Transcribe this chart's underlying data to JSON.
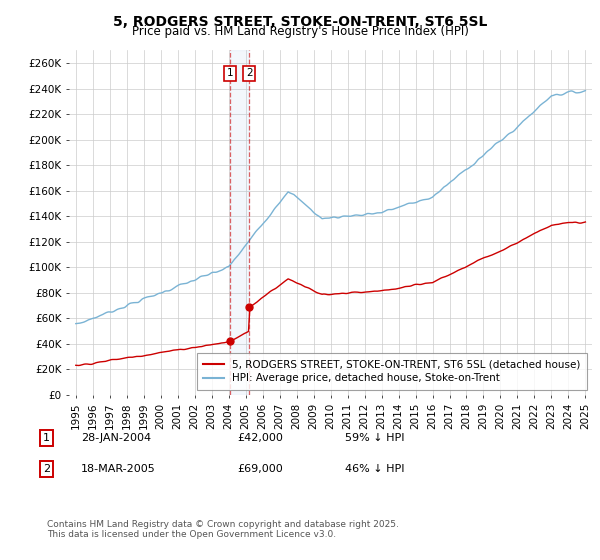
{
  "title": "5, RODGERS STREET, STOKE-ON-TRENT, ST6 5SL",
  "subtitle": "Price paid vs. HM Land Registry's House Price Index (HPI)",
  "ylim": [
    0,
    270000
  ],
  "yticks": [
    0,
    20000,
    40000,
    60000,
    80000,
    100000,
    120000,
    140000,
    160000,
    180000,
    200000,
    220000,
    240000,
    260000
  ],
  "ytick_labels": [
    "£0",
    "£20K",
    "£40K",
    "£60K",
    "£80K",
    "£100K",
    "£120K",
    "£140K",
    "£160K",
    "£180K",
    "£200K",
    "£220K",
    "£240K",
    "£260K"
  ],
  "hpi_color": "#7ab3d4",
  "price_color": "#cc0000",
  "marker_color": "#cc0000",
  "vline_color": "#cc0000",
  "grid_color": "#cccccc",
  "background_color": "#ffffff",
  "sale1_date": 2004.07,
  "sale1_price": 42000,
  "sale2_date": 2005.21,
  "sale2_price": 69000,
  "sale1_display": "28-JAN-2004",
  "sale1_price_display": "£42,000",
  "sale1_hpi_pct": "59% ↓ HPI",
  "sale2_display": "18-MAR-2005",
  "sale2_price_display": "£69,000",
  "sale2_hpi_pct": "46% ↓ HPI",
  "legend_line1": "5, RODGERS STREET, STOKE-ON-TRENT, ST6 5SL (detached house)",
  "legend_line2": "HPI: Average price, detached house, Stoke-on-Trent",
  "footer": "Contains HM Land Registry data © Crown copyright and database right 2025.\nThis data is licensed under the Open Government Licence v3.0.",
  "title_fontsize": 10,
  "subtitle_fontsize": 8.5,
  "tick_fontsize": 7.5,
  "legend_fontsize": 7.5,
  "footer_fontsize": 6.5
}
